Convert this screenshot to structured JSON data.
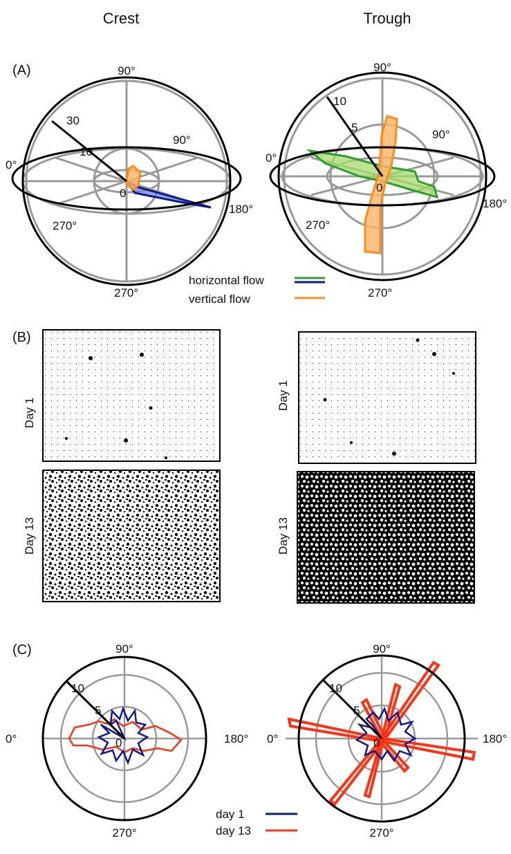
{
  "columns": {
    "left": "Crest",
    "right": "Trough"
  },
  "panels": {
    "a": "(A)",
    "b": "(B)",
    "c": "(C)"
  },
  "panel_a": {
    "crest": {
      "angle_top": "90°",
      "angle_left": "0°",
      "angle_right_upper": "90°",
      "angle_right": "180°",
      "angle_lower_left": "270°",
      "angle_bottom": "270°",
      "radius_labels": [
        "30",
        "10",
        "0"
      ]
    },
    "trough": {
      "angle_top": "90°",
      "angle_left": "0°",
      "angle_right_upper": "90°",
      "angle_right": "180°",
      "angle_lower_left": "270°",
      "angle_bottom": "270°",
      "radius_labels": [
        "10",
        "5",
        "0"
      ]
    },
    "legend": [
      {
        "label": "horizontal flow",
        "colors": [
          "#2ca02c",
          "#0d1a8c"
        ]
      },
      {
        "label": "vertical flow",
        "colors": [
          "#ff8c1a"
        ]
      }
    ]
  },
  "panel_b": {
    "row_labels": [
      "Day 1",
      "Day 13"
    ]
  },
  "panel_c": {
    "crest": {
      "angle_top": "90°",
      "angle_left": "0°",
      "angle_right": "180°",
      "angle_bottom": "270°",
      "radius_labels": [
        "10",
        "5",
        "0"
      ]
    },
    "trough": {
      "angle_top": "90°",
      "angle_left": "0°",
      "angle_right": "180°",
      "angle_bottom": "270°",
      "radius_labels": [
        "10",
        "5",
        "0"
      ]
    },
    "legend": [
      {
        "label": "day 1",
        "color": "#0d1a8c"
      },
      {
        "label": "day 13",
        "color": "#ff3311"
      }
    ]
  },
  "colors": {
    "horizontal_crest": "#0d1a8c",
    "horizontal_trough": "#2ca02c",
    "vertical": "#ff8c1a",
    "day1": "#0d1a8c",
    "day13": "#ff3311",
    "grid": "#999999"
  }
}
